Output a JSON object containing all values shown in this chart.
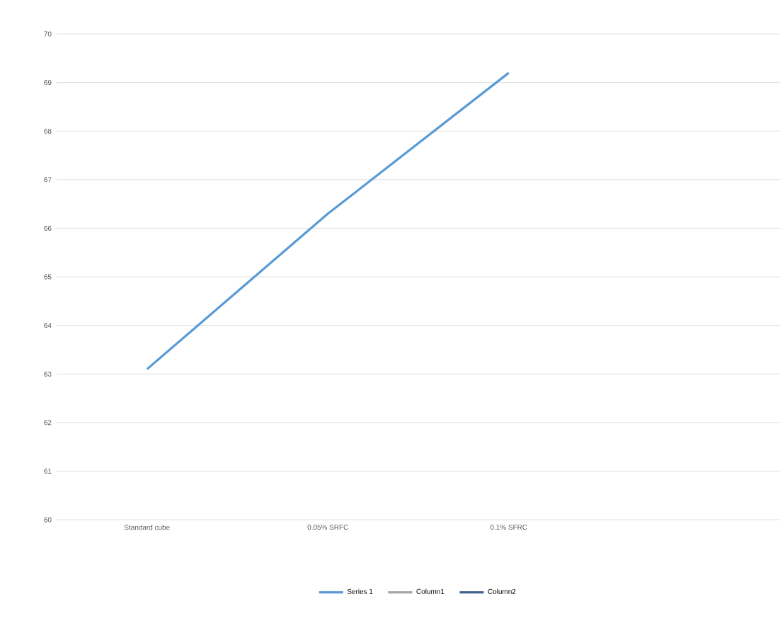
{
  "chart_data": {
    "type": "line",
    "categories": [
      "Standard cube",
      "0.05% SRFC",
      "0.1% SFRC",
      null
    ],
    "series": [
      {
        "name": "Series 1",
        "color": "#5b9bd5",
        "values": [
          63.1,
          66.3,
          69.2,
          null
        ]
      },
      {
        "name": "Column1",
        "color": "#a5a5a5",
        "values": [
          null,
          null,
          null,
          null
        ]
      },
      {
        "name": "Column2",
        "color": "#44668c",
        "values": [
          null,
          null,
          null,
          null
        ]
      }
    ],
    "ylim": [
      60,
      70
    ],
    "yticks": [
      60,
      61,
      62,
      63,
      64,
      65,
      66,
      67,
      68,
      69,
      70
    ],
    "grid": "y",
    "legend": "bottom",
    "marker": "none",
    "line_style": "solid"
  }
}
